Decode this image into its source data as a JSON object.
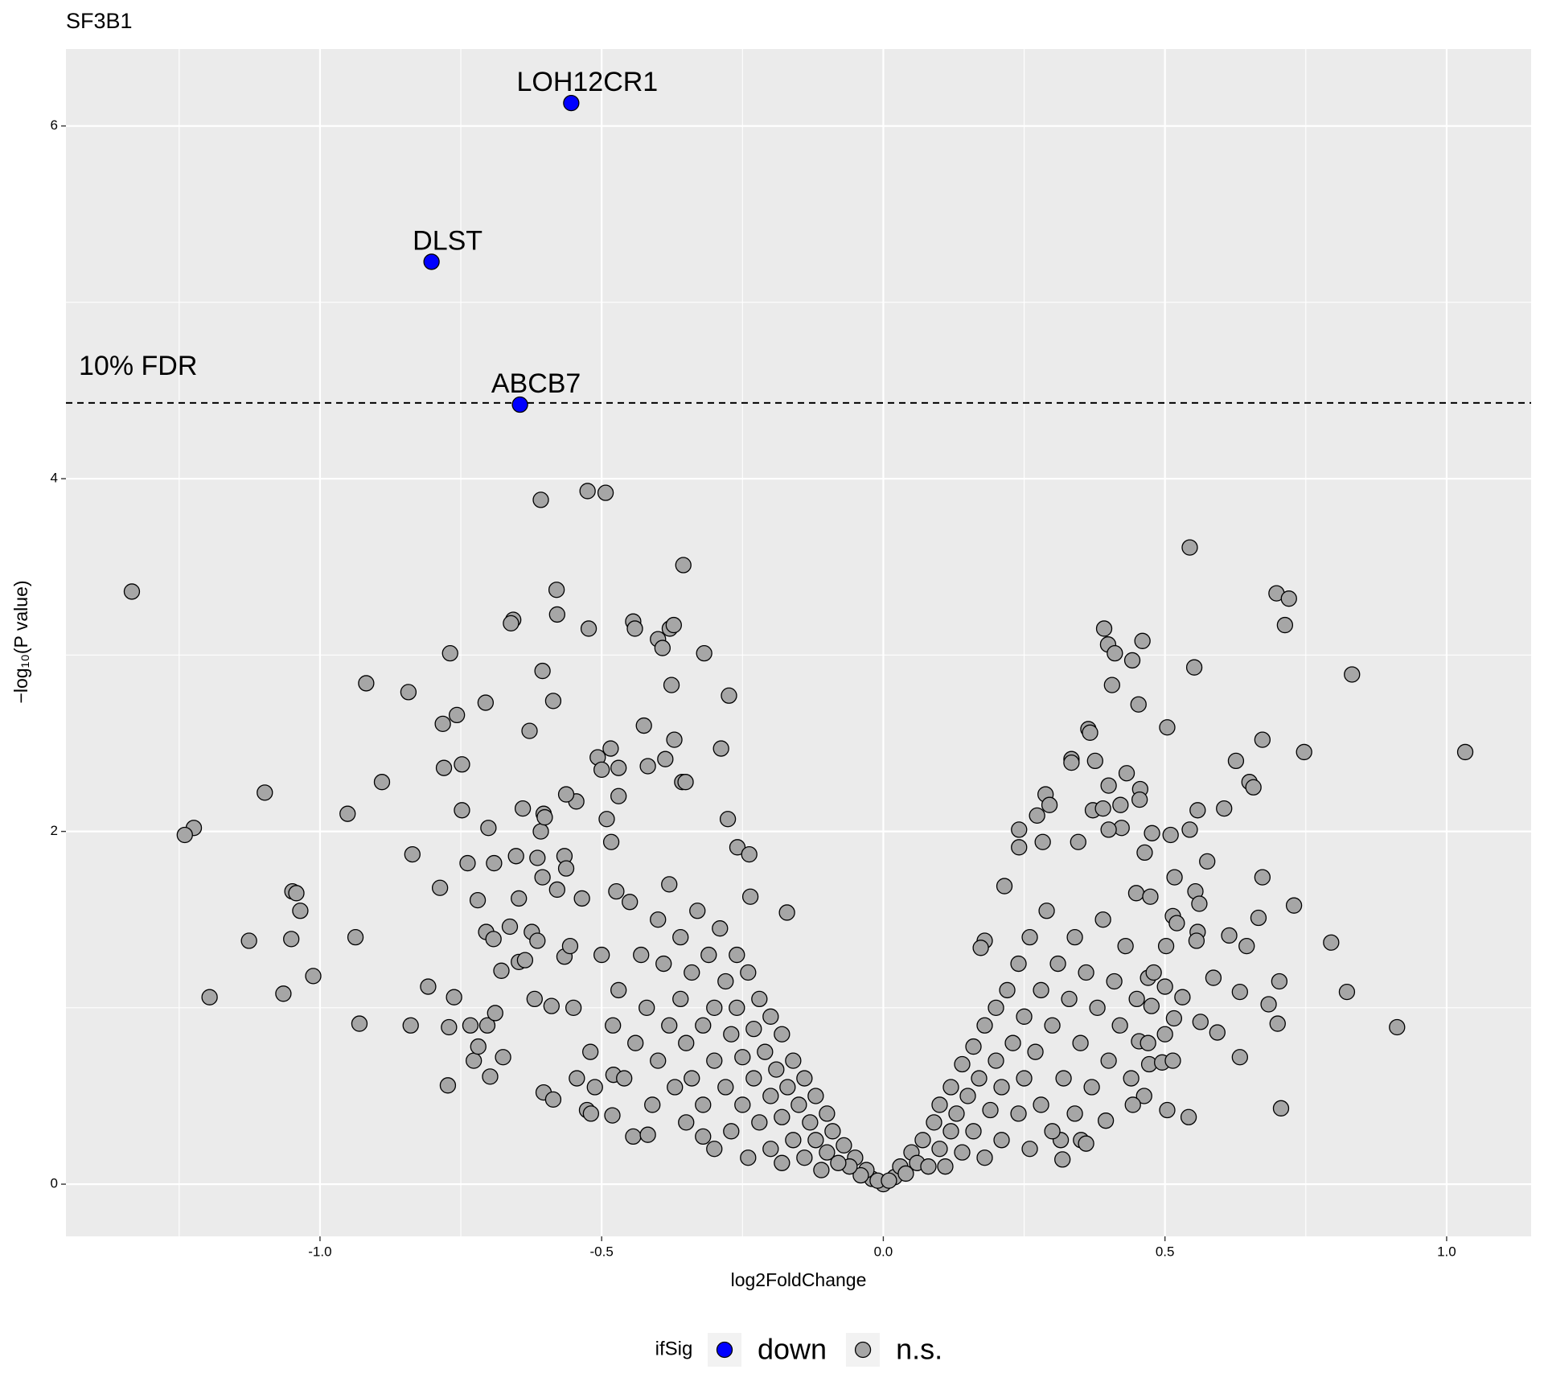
{
  "chart_data": {
    "type": "scatter",
    "title": "SF3B1",
    "x_label": "log2FoldChange",
    "y_label": "−log₁₀(P value)",
    "xlim": [
      -1.451,
      1.15
    ],
    "ylim": [
      -0.296,
      6.436
    ],
    "xticks": [
      {
        "value": -1,
        "label": "-1.0"
      },
      -0.5,
      {
        "value": 0,
        "label": "0.0"
      },
      0.5,
      {
        "value": 1,
        "label": "1.0"
      }
    ],
    "yticks": [
      0,
      2,
      4,
      6
    ],
    "grid": true,
    "minor_grid": true,
    "hline": {
      "y": 4.43,
      "label": "10% FDR"
    },
    "legend_title": "ifSig",
    "legend_position": "bottom",
    "series": [
      {
        "name": "down",
        "color": "#0000ff",
        "x": [
          -0.554,
          -0.802,
          -0.645
        ],
        "values": [
          6.13,
          5.23,
          4.42
        ],
        "point_labels": [
          "LOH12CR1",
          "DLST",
          "ABCB7"
        ]
      },
      {
        "name": "n.s.",
        "color": "#a6a6a6",
        "x": [
          -1.334,
          -1.224,
          -1.24,
          -1.196,
          -1.098,
          -1.126,
          -1.049,
          -1.042,
          -1.035,
          -1.051,
          -1.065,
          -1.012,
          -0.918,
          -0.951,
          -0.937,
          -0.93,
          -0.89,
          -0.843,
          -0.836,
          -0.839,
          -0.808,
          -0.787,
          -0.782,
          -0.78,
          -0.769,
          -0.757,
          -0.748,
          -0.748,
          -0.762,
          -0.771,
          -0.773,
          -0.738,
          -0.72,
          -0.706,
          -0.701,
          -0.705,
          -0.691,
          -0.692,
          -0.733,
          -0.727,
          -0.719,
          -0.703,
          -0.698,
          -0.689,
          -0.675,
          -0.678,
          -0.663,
          -0.657,
          -0.661,
          -0.652,
          -0.647,
          -0.647,
          -0.636,
          -0.64,
          -0.628,
          -0.619,
          -0.624,
          -0.614,
          -0.608,
          -0.608,
          -0.605,
          -0.603,
          -0.601,
          -0.605,
          -0.614,
          -0.603,
          -0.586,
          -0.589,
          -0.58,
          -0.579,
          -0.586,
          -0.579,
          -0.566,
          -0.563,
          -0.566,
          -0.556,
          -0.544,
          -0.525,
          -0.493,
          -0.523,
          -0.545,
          -0.563,
          -0.526,
          -0.519,
          -0.512,
          -0.535,
          -0.507,
          -0.5,
          -0.484,
          -0.481,
          -0.491,
          -0.483,
          -0.47,
          -0.47,
          -0.474,
          -0.444,
          -0.441,
          -0.444,
          -0.425,
          -0.418,
          -0.4,
          -0.392,
          -0.379,
          -0.372,
          -0.376,
          -0.371,
          -0.387,
          -0.355,
          -0.357,
          -0.351,
          -0.318,
          -0.274,
          -0.288,
          -0.276,
          -0.259,
          -0.238,
          -0.236,
          -0.171,
          -0.32,
          -0.418,
          -0.479,
          0.544,
          0.698,
          0.72,
          0.713,
          0.832,
          1.033,
          0.747,
          0.673,
          0.626,
          0.65,
          0.657,
          0.605,
          0.552,
          0.46,
          0.442,
          0.392,
          0.399,
          0.411,
          0.406,
          0.453,
          0.504,
          0.364,
          0.367,
          0.334,
          0.334,
          0.376,
          0.432,
          0.4,
          0.456,
          0.455,
          0.288,
          0.295,
          0.273,
          0.372,
          0.39,
          0.421,
          0.558,
          0.544,
          0.51,
          0.477,
          0.423,
          0.4,
          0.241,
          0.241,
          0.283,
          0.346,
          0.464,
          0.575,
          0.673,
          0.729,
          0.795,
          0.823,
          0.912,
          0.703,
          0.7,
          0.706,
          0.633,
          0.633,
          0.684,
          0.666,
          0.645,
          0.614,
          0.586,
          0.593,
          0.542,
          0.504,
          0.318,
          0.315,
          0.351,
          0.36,
          0.215,
          0.18,
          0.173,
          0.517,
          0.554,
          0.561,
          0.514,
          0.521,
          0.558,
          0.556,
          0.449,
          0.474,
          0.502,
          0.47,
          0.5,
          0.531,
          0.476,
          0.563,
          0.516,
          0.454,
          0.5,
          0.472,
          0.495,
          0.514,
          0.463,
          0.443,
          0.395,
          -0.02,
          -0.03,
          -0.04,
          -0.05,
          -0.06,
          -0.07,
          -0.08,
          -0.09,
          -0.1,
          -0.1,
          -0.11,
          -0.12,
          -0.12,
          -0.13,
          -0.14,
          -0.14,
          -0.15,
          -0.16,
          -0.16,
          -0.17,
          -0.18,
          -0.18,
          -0.18,
          -0.19,
          -0.2,
          -0.2,
          -0.2,
          -0.21,
          -0.22,
          -0.22,
          -0.23,
          -0.23,
          -0.24,
          -0.24,
          -0.25,
          -0.25,
          -0.26,
          -0.26,
          -0.27,
          -0.27,
          -0.28,
          -0.28,
          -0.29,
          -0.3,
          -0.3,
          -0.3,
          -0.31,
          -0.32,
          -0.32,
          -0.33,
          -0.34,
          -0.34,
          -0.35,
          -0.35,
          -0.36,
          -0.36,
          -0.37,
          -0.38,
          -0.38,
          -0.39,
          -0.4,
          -0.4,
          -0.41,
          -0.42,
          -0.43,
          -0.44,
          -0.45,
          -0.46,
          -0.47,
          -0.48,
          -0.5,
          -0.52,
          -0.55,
          0.02,
          0.03,
          0.04,
          0.05,
          0.06,
          0.07,
          0.08,
          0.09,
          0.1,
          0.1,
          0.11,
          0.12,
          0.12,
          0.13,
          0.14,
          0.14,
          0.15,
          0.16,
          0.16,
          0.17,
          0.18,
          0.18,
          0.19,
          0.2,
          0.2,
          0.21,
          0.21,
          0.22,
          0.23,
          0.24,
          0.24,
          0.25,
          0.25,
          0.26,
          0.26,
          0.27,
          0.28,
          0.28,
          0.29,
          0.3,
          0.3,
          0.31,
          0.32,
          0.33,
          0.34,
          0.34,
          0.35,
          0.36,
          0.37,
          0.38,
          0.39,
          0.4,
          0.41,
          0.42,
          0.43,
          0.44,
          0.45,
          0.47,
          0.48,
          0,
          -0.01,
          0.01
        ],
        "values": [
          3.36,
          2.02,
          1.98,
          1.06,
          2.22,
          1.38,
          1.66,
          1.65,
          1.55,
          1.39,
          1.08,
          1.18,
          2.84,
          2.1,
          1.4,
          0.91,
          2.28,
          2.79,
          1.87,
          0.9,
          1.12,
          1.68,
          2.61,
          2.36,
          3.01,
          2.66,
          2.38,
          2.12,
          1.06,
          0.89,
          0.56,
          1.82,
          1.61,
          2.73,
          2.02,
          1.43,
          1.82,
          1.39,
          0.9,
          0.7,
          0.78,
          0.9,
          0.61,
          0.97,
          0.72,
          1.21,
          1.46,
          3.2,
          3.18,
          1.86,
          1.62,
          1.26,
          1.27,
          2.13,
          2.57,
          1.05,
          1.43,
          1.38,
          3.88,
          2.0,
          2.91,
          2.1,
          2.08,
          1.74,
          1.85,
          0.52,
          0.48,
          1.01,
          3.37,
          3.23,
          2.74,
          1.67,
          1.86,
          1.79,
          1.29,
          1.35,
          0.6,
          3.93,
          3.92,
          3.15,
          2.17,
          2.21,
          0.42,
          0.4,
          0.55,
          1.62,
          2.42,
          2.35,
          2.47,
          0.39,
          2.07,
          1.94,
          2.36,
          2.2,
          1.66,
          3.19,
          3.15,
          0.27,
          2.6,
          2.37,
          3.09,
          3.04,
          3.15,
          3.17,
          2.83,
          2.52,
          2.41,
          3.51,
          2.28,
          2.28,
          3.01,
          2.77,
          2.47,
          2.07,
          1.91,
          1.87,
          1.63,
          1.54,
          0.27,
          0.28,
          0.62,
          3.61,
          3.35,
          3.32,
          3.17,
          2.89,
          2.45,
          2.45,
          2.52,
          2.4,
          2.28,
          2.25,
          2.13,
          2.93,
          3.08,
          2.97,
          3.15,
          3.06,
          3.01,
          2.83,
          2.72,
          2.59,
          2.58,
          2.56,
          2.41,
          2.39,
          2.4,
          2.33,
          2.26,
          2.24,
          2.18,
          2.21,
          2.15,
          2.09,
          2.12,
          2.13,
          2.15,
          2.12,
          2.01,
          1.98,
          1.99,
          2.02,
          2.01,
          2.01,
          1.91,
          1.94,
          1.94,
          1.88,
          1.83,
          1.74,
          1.58,
          1.37,
          1.09,
          0.89,
          1.15,
          0.91,
          0.43,
          0.72,
          1.09,
          1.02,
          1.51,
          1.35,
          1.41,
          1.17,
          0.86,
          0.38,
          0.42,
          0.14,
          0.25,
          0.25,
          0.23,
          1.69,
          1.38,
          1.34,
          1.74,
          1.66,
          1.59,
          1.52,
          1.48,
          1.43,
          1.38,
          1.65,
          1.63,
          1.35,
          1.17,
          1.12,
          1.06,
          1.01,
          0.92,
          0.94,
          0.81,
          0.85,
          0.68,
          0.69,
          0.7,
          0.5,
          0.45,
          0.36,
          0.03,
          0.08,
          0.05,
          0.15,
          0.1,
          0.22,
          0.12,
          0.3,
          0.18,
          0.4,
          0.08,
          0.25,
          0.5,
          0.35,
          0.15,
          0.6,
          0.45,
          0.25,
          0.7,
          0.55,
          0.12,
          0.38,
          0.85,
          0.65,
          0.2,
          0.5,
          0.95,
          0.75,
          0.35,
          1.05,
          0.6,
          0.88,
          0.15,
          1.2,
          0.45,
          0.72,
          1.0,
          1.3,
          0.3,
          0.85,
          0.55,
          1.15,
          1.45,
          0.2,
          0.7,
          1.0,
          1.3,
          0.45,
          0.9,
          1.55,
          0.6,
          1.2,
          0.35,
          0.8,
          1.05,
          1.4,
          0.55,
          0.9,
          1.7,
          1.25,
          0.7,
          1.5,
          0.45,
          1.0,
          1.3,
          0.8,
          1.6,
          0.6,
          1.1,
          0.9,
          1.3,
          0.75,
          1.0,
          0.04,
          0.1,
          0.06,
          0.18,
          0.12,
          0.25,
          0.1,
          0.35,
          0.2,
          0.45,
          0.1,
          0.3,
          0.55,
          0.4,
          0.18,
          0.68,
          0.5,
          0.3,
          0.78,
          0.6,
          0.15,
          0.9,
          0.42,
          0.7,
          1.0,
          0.25,
          0.55,
          1.1,
          0.8,
          0.4,
          1.25,
          0.6,
          0.95,
          0.2,
          1.4,
          0.75,
          1.1,
          0.45,
          1.55,
          0.9,
          0.3,
          1.25,
          0.6,
          1.05,
          1.4,
          0.4,
          0.8,
          1.2,
          0.55,
          1.0,
          1.5,
          0.7,
          1.15,
          0.9,
          1.35,
          0.6,
          1.05,
          0.8,
          1.2,
          0,
          0.02,
          0.02
        ]
      }
    ]
  }
}
